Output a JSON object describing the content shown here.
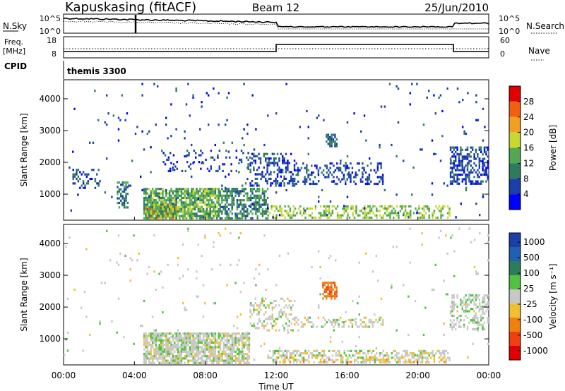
{
  "header": {
    "station": "Kapuskasing (fitACF)",
    "beam": "Beam 12",
    "date": "25/Jun/2010"
  },
  "summary": {
    "nsky_label": "N.Sky",
    "nsky_ticks": [
      "10^5",
      "10^0"
    ],
    "nsearch_label": "N.Search",
    "freq_label": "Freq.",
    "freq_unit": "[MHz]",
    "freq_ticks": [
      "18",
      "8"
    ],
    "nave_label": "Nave",
    "nave_ticks": [
      "60",
      "0"
    ],
    "cpid_label": "CPID",
    "cpid_value": "themis 3300"
  },
  "colors": {
    "power_scale": [
      "#0000ff",
      "#1a3fa8",
      "#2e7a5c",
      "#52a852",
      "#c8d832",
      "#f0a020",
      "#f06010",
      "#e00000"
    ],
    "velocity_scale": [
      "#1a3fa8",
      "#2060b0",
      "#2e7a5c",
      "#52c040",
      "#c8c8c8",
      "#f0c030",
      "#f08010",
      "#f04010",
      "#e00000"
    ],
    "ground": "#bbbbbb"
  },
  "chart_data": [
    {
      "type": "heatmap",
      "name": "power",
      "ylabel": "Slant Range [km]",
      "xlabel": "",
      "ylim": [
        180,
        4600
      ],
      "yticks": [
        1000,
        2000,
        3000,
        4000
      ],
      "xlim": [
        0,
        24
      ],
      "colorbar": {
        "label": "Power [dB]",
        "ticks": [
          4,
          8,
          12,
          16,
          20,
          24,
          28
        ],
        "range": [
          0,
          32
        ]
      },
      "regions": [
        {
          "t0": 4.6,
          "t1": 6.4,
          "r0": 240,
          "r1": 700,
          "value": 24,
          "density": 0.85
        },
        {
          "t0": 4.5,
          "t1": 8.8,
          "r0": 240,
          "r1": 1200,
          "value": 14,
          "density": 0.8
        },
        {
          "t0": 8.8,
          "t1": 11.5,
          "r0": 240,
          "r1": 1200,
          "value": 10,
          "density": 0.6
        },
        {
          "t0": 11.5,
          "t1": 21.8,
          "r0": 240,
          "r1": 650,
          "value": 16,
          "density": 0.45
        },
        {
          "t0": 10.5,
          "t1": 13,
          "r0": 1300,
          "r1": 2300,
          "value": 6,
          "density": 0.35
        },
        {
          "t0": 5.5,
          "t1": 10.5,
          "r0": 1700,
          "r1": 2400,
          "value": 6,
          "density": 0.12
        },
        {
          "t0": 13,
          "t1": 18,
          "r0": 1350,
          "r1": 2000,
          "value": 6,
          "density": 0.3
        },
        {
          "t0": 14.8,
          "t1": 15.4,
          "r0": 2500,
          "r1": 2900,
          "value": 8,
          "density": 0.7
        },
        {
          "t0": 21.8,
          "t1": 24,
          "r0": 1300,
          "r1": 2500,
          "value": 6,
          "density": 0.5
        },
        {
          "t0": 0.5,
          "t1": 2,
          "r0": 1200,
          "r1": 1800,
          "value": 6,
          "density": 0.25
        },
        {
          "t0": 3,
          "t1": 3.6,
          "r0": 600,
          "r1": 1400,
          "value": 10,
          "density": 0.5
        },
        {
          "t0": 0,
          "t1": 24,
          "r0": 250,
          "r1": 4500,
          "value": 6,
          "density": 0.015
        }
      ]
    },
    {
      "type": "heatmap",
      "name": "velocity",
      "ylabel": "Slant Range [km]",
      "xlabel": "Time UT",
      "ylim": [
        180,
        4600
      ],
      "yticks": [
        1000,
        2000,
        3000,
        4000
      ],
      "xlim": [
        0,
        24
      ],
      "xticks": [
        "00:00",
        "04:00",
        "08:00",
        "12:00",
        "16:00",
        "20:00",
        "00:00"
      ],
      "colorbar": {
        "label": "Velocity [m s⁻¹]",
        "ticks": [
          "1000",
          "500",
          "100",
          "25",
          "-25",
          "-100",
          "-500",
          "-1000"
        ],
        "range": [
          -1200,
          1200
        ]
      },
      "regions": [
        {
          "t0": 4.5,
          "t1": 10.5,
          "r0": 240,
          "r1": 1200,
          "value": 0,
          "density": 0.75
        },
        {
          "t0": 4.5,
          "t1": 8.8,
          "r0": 240,
          "r1": 1200,
          "value": 60,
          "density": 0.25
        },
        {
          "t0": 11.5,
          "t1": 21.8,
          "r0": 240,
          "r1": 650,
          "value": 0,
          "density": 0.45
        },
        {
          "t0": 11.5,
          "t1": 21.8,
          "r0": 240,
          "r1": 450,
          "value": -300,
          "density": 0.2
        },
        {
          "t0": 13,
          "t1": 18,
          "r0": 1350,
          "r1": 1700,
          "value": 0,
          "density": 0.35
        },
        {
          "t0": 14.6,
          "t1": 15.4,
          "r0": 2300,
          "r1": 2800,
          "value": -600,
          "density": 0.75
        },
        {
          "t0": 21.8,
          "t1": 24,
          "r0": 1300,
          "r1": 2400,
          "value": 60,
          "density": 0.4
        },
        {
          "t0": 10.5,
          "t1": 13,
          "r0": 1300,
          "r1": 2300,
          "value": 0,
          "density": 0.25
        },
        {
          "t0": 0,
          "t1": 24,
          "r0": 250,
          "r1": 4500,
          "value": 0,
          "density": 0.015
        }
      ]
    }
  ]
}
